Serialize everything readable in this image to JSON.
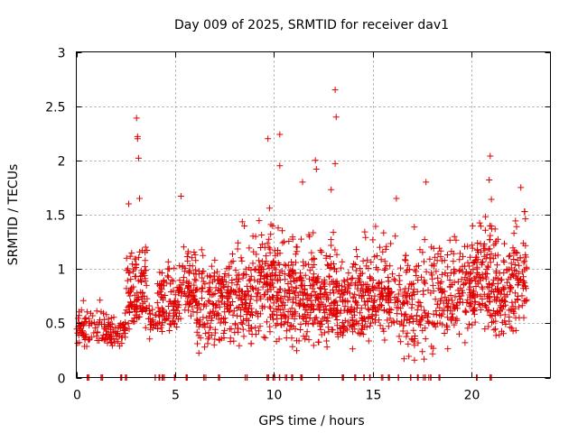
{
  "chart_data": {
    "type": "scatter",
    "title": "Day 009 of 2025, SRMTID for receiver dav1",
    "xlabel": "GPS time / hours",
    "ylabel": "SRMTID / TECUs",
    "xlim": [
      0,
      24
    ],
    "ylim": [
      0,
      3
    ],
    "xticks": [
      0,
      5,
      10,
      15,
      20
    ],
    "yticks": [
      0,
      0.5,
      1,
      1.5,
      2,
      2.5,
      3
    ],
    "xtick_labels": [
      "0",
      "5",
      "10",
      "15",
      "20"
    ],
    "ytick_labels": [
      "0",
      "0.5",
      "1",
      "1.5",
      "2",
      "2.5",
      "3"
    ],
    "grid": true,
    "marker": "+",
    "series_color": "#e00000",
    "notable_points": [
      {
        "x": 3.05,
        "y": 2.39
      },
      {
        "x": 3.1,
        "y": 2.22
      },
      {
        "x": 3.1,
        "y": 2.2
      },
      {
        "x": 3.15,
        "y": 2.02
      },
      {
        "x": 3.2,
        "y": 1.65
      },
      {
        "x": 2.65,
        "y": 1.6
      },
      {
        "x": 5.3,
        "y": 1.67
      },
      {
        "x": 9.7,
        "y": 2.2
      },
      {
        "x": 10.3,
        "y": 2.24
      },
      {
        "x": 10.3,
        "y": 1.95
      },
      {
        "x": 11.45,
        "y": 1.8
      },
      {
        "x": 12.1,
        "y": 2.0
      },
      {
        "x": 12.15,
        "y": 1.92
      },
      {
        "x": 13.1,
        "y": 2.65
      },
      {
        "x": 13.15,
        "y": 2.4
      },
      {
        "x": 13.1,
        "y": 1.97
      },
      {
        "x": 12.9,
        "y": 1.73
      },
      {
        "x": 16.2,
        "y": 1.65
      },
      {
        "x": 17.7,
        "y": 1.8
      },
      {
        "x": 20.95,
        "y": 2.04
      },
      {
        "x": 20.9,
        "y": 1.82
      },
      {
        "x": 22.5,
        "y": 1.75
      }
    ],
    "zero_points_x": [
      0.6,
      1.3,
      2.3,
      2.5,
      4.0,
      4.2,
      4.4,
      5.0,
      5.6,
      6.5,
      7.2,
      8.6,
      9.7,
      10.0,
      10.3,
      10.6,
      10.9,
      11.4,
      12.3,
      13.5,
      14.1,
      14.6,
      14.9,
      15.5,
      15.8,
      16.3,
      16.9,
      17.3,
      17.6,
      17.9,
      18.4,
      20.3,
      21.0
    ],
    "clusters": [
      {
        "x_start": 0.0,
        "x_end": 0.7,
        "y_low": 0.2,
        "y_high": 0.8,
        "count": 45
      },
      {
        "x_start": 0.7,
        "x_end": 1.4,
        "y_low": 0.3,
        "y_high": 0.75,
        "count": 25
      },
      {
        "x_start": 1.4,
        "x_end": 2.5,
        "y_low": 0.25,
        "y_high": 0.65,
        "count": 70
      },
      {
        "x_start": 2.5,
        "x_end": 3.6,
        "y_low": 0.35,
        "y_high": 1.4,
        "count": 110
      },
      {
        "x_start": 3.6,
        "x_end": 4.1,
        "y_low": 0.3,
        "y_high": 0.8,
        "count": 20
      },
      {
        "x_start": 4.1,
        "x_end": 5.1,
        "y_low": 0.3,
        "y_high": 1.2,
        "count": 90
      },
      {
        "x_start": 5.1,
        "x_end": 6.1,
        "y_low": 0.4,
        "y_high": 1.4,
        "count": 90
      },
      {
        "x_start": 6.1,
        "x_end": 7.1,
        "y_low": 0.2,
        "y_high": 1.35,
        "count": 90
      },
      {
        "x_start": 7.1,
        "x_end": 8.1,
        "y_low": 0.25,
        "y_high": 1.3,
        "count": 90
      },
      {
        "x_start": 8.1,
        "x_end": 9.1,
        "y_low": 0.15,
        "y_high": 1.5,
        "count": 100
      },
      {
        "x_start": 9.1,
        "x_end": 10.1,
        "y_low": 0.3,
        "y_high": 1.7,
        "count": 110
      },
      {
        "x_start": 10.1,
        "x_end": 11.1,
        "y_low": 0.2,
        "y_high": 1.6,
        "count": 110
      },
      {
        "x_start": 11.1,
        "x_end": 12.1,
        "y_low": 0.15,
        "y_high": 1.6,
        "count": 110
      },
      {
        "x_start": 12.1,
        "x_end": 13.1,
        "y_low": 0.2,
        "y_high": 1.5,
        "count": 110
      },
      {
        "x_start": 13.1,
        "x_end": 14.1,
        "y_low": 0.2,
        "y_high": 1.4,
        "count": 100
      },
      {
        "x_start": 14.1,
        "x_end": 15.1,
        "y_low": 0.25,
        "y_high": 1.45,
        "count": 100
      },
      {
        "x_start": 15.1,
        "x_end": 16.1,
        "y_low": 0.25,
        "y_high": 1.5,
        "count": 90
      },
      {
        "x_start": 16.1,
        "x_end": 17.1,
        "y_low": 0.1,
        "y_high": 1.5,
        "count": 80
      },
      {
        "x_start": 17.1,
        "x_end": 18.1,
        "y_low": 0.1,
        "y_high": 1.5,
        "count": 70
      },
      {
        "x_start": 18.1,
        "x_end": 19.1,
        "y_low": 0.25,
        "y_high": 1.45,
        "count": 80
      },
      {
        "x_start": 19.1,
        "x_end": 20.1,
        "y_low": 0.3,
        "y_high": 1.55,
        "count": 90
      },
      {
        "x_start": 20.1,
        "x_end": 21.1,
        "y_low": 0.3,
        "y_high": 1.75,
        "count": 110
      },
      {
        "x_start": 21.1,
        "x_end": 22.1,
        "y_low": 0.25,
        "y_high": 1.5,
        "count": 100
      },
      {
        "x_start": 22.1,
        "x_end": 22.8,
        "y_low": 0.3,
        "y_high": 1.7,
        "count": 70
      }
    ]
  }
}
